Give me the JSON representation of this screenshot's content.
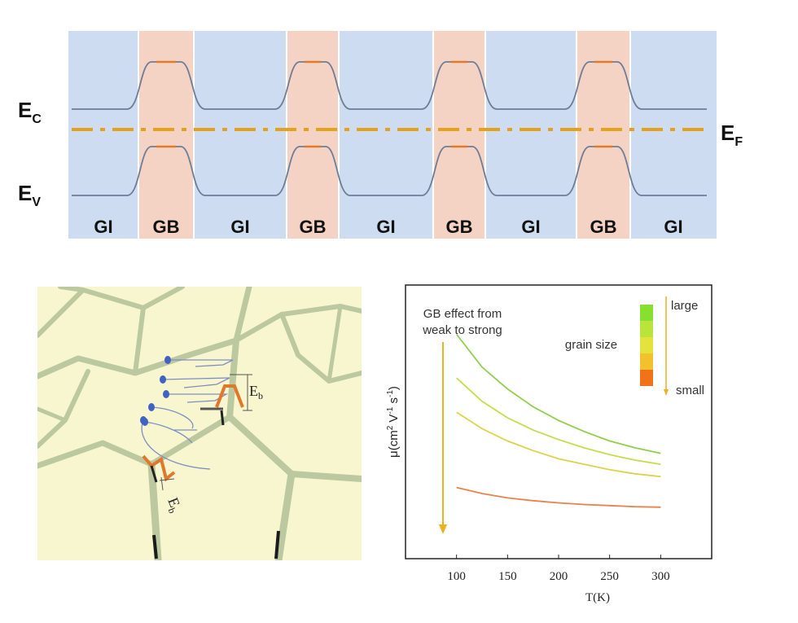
{
  "band_diagram": {
    "regions": [
      "GI",
      "GB",
      "GI",
      "GB",
      "GI",
      "GB",
      "GI",
      "GB",
      "GI"
    ],
    "labels": {
      "ec": "E",
      "ec_sub": "C",
      "ev": "E",
      "ev_sub": "V",
      "ef": "E",
      "ef_sub": "F"
    },
    "colors": {
      "grain_interior": "#cddcf1",
      "grain_boundary": "#f5d3c4",
      "fermi_level": "#e3a21a",
      "band_edge": "#6e7d96",
      "barrier_top": "#e07a2e"
    }
  },
  "grain_schematic": {
    "barrier_label_main": "E",
    "barrier_label_sub": "b",
    "colors": {
      "background": "#f8f6cf",
      "grain_wall": "#bcc8a0",
      "barrier": "#e0782c",
      "carrier": "#3f62c4",
      "trajectory": "#7d8fc2"
    }
  },
  "chart_data": {
    "type": "line",
    "xlabel": "T(K)",
    "ylabel": "μ(cm² V⁻¹ s⁻¹)",
    "ylabel_main": "μ(cm",
    "ylabel_sup1": "2",
    "ylabel_mid": " V",
    "ylabel_sup2": "-1",
    "ylabel_mid2": " s",
    "ylabel_sup3": "-1",
    "ylabel_end": ")",
    "xlim": [
      50,
      350
    ],
    "ylim": [
      0,
      10
    ],
    "xticks": [
      100,
      150,
      200,
      250,
      300
    ],
    "x": [
      100,
      125,
      150,
      175,
      200,
      225,
      250,
      275,
      300
    ],
    "series": [
      {
        "color": "#8fcf4a",
        "values": [
          8.2,
          7.0,
          6.2,
          5.55,
          5.05,
          4.65,
          4.3,
          4.05,
          3.85
        ]
      },
      {
        "color": "#c6dc4b",
        "values": [
          6.6,
          5.75,
          5.15,
          4.7,
          4.35,
          4.05,
          3.8,
          3.6,
          3.45
        ]
      },
      {
        "color": "#dcd34a",
        "values": [
          5.35,
          4.75,
          4.3,
          3.95,
          3.65,
          3.45,
          3.25,
          3.1,
          3.0
        ]
      },
      {
        "color": "#e8834a",
        "values": [
          2.6,
          2.38,
          2.22,
          2.12,
          2.04,
          1.98,
          1.94,
          1.9,
          1.88
        ]
      }
    ],
    "annotations": {
      "gb_effect_line1": "GB effect from",
      "gb_effect_line2": "weak to strong",
      "grain_size": "grain size",
      "large": "large",
      "small": "small"
    },
    "scale_colors": [
      "#86e02f",
      "#b8e43b",
      "#e4e33c",
      "#f2c12e",
      "#f07219"
    ],
    "arrow_color": "#eeb020",
    "grid": false
  }
}
